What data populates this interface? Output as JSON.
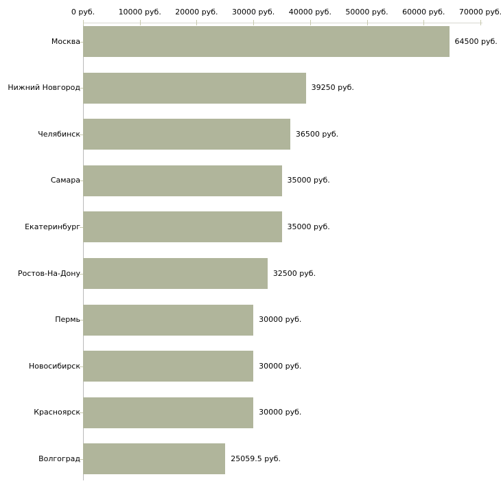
{
  "chart_data": {
    "type": "bar",
    "orientation": "horizontal",
    "title": "",
    "xlabel": "",
    "ylabel": "",
    "categories": [
      "Москва",
      "Нижний Новгород",
      "Челябинск",
      "Самара",
      "Екатеринбург",
      "Ростов-На-Дону",
      "Пермь",
      "Новосибирск",
      "Красноярск",
      "Волгоград"
    ],
    "values": [
      64500,
      39250,
      36500,
      35000,
      35000,
      32500,
      30000,
      30000,
      30000,
      25059.5
    ],
    "value_labels": [
      "64500 руб.",
      "39250 руб.",
      "36500 руб.",
      "35000 руб.",
      "35000 руб.",
      "32500 руб.",
      "30000 руб.",
      "30000 руб.",
      "30000 руб.",
      "25059.5 руб."
    ],
    "unit": "руб.",
    "xlim": [
      0,
      70000
    ],
    "x_ticks": [
      0,
      10000,
      20000,
      30000,
      40000,
      50000,
      60000,
      70000
    ],
    "x_tick_labels": [
      "0 руб.",
      "10000 руб.",
      "20000 руб.",
      "30000 руб.",
      "40000 руб.",
      "50000 руб.",
      "60000 руб.",
      "70000 руб."
    ],
    "grid": false,
    "legend": false,
    "axis_position": "top",
    "colors": {
      "bar": "#b0b59b",
      "x_axis_line": "#d6d6d0",
      "x_tick": "#c7c9ad",
      "category_tick": "#c7c9ad",
      "y_axis_line": "#b9b9b9",
      "text": "#000000",
      "background": "#ffffff"
    }
  }
}
